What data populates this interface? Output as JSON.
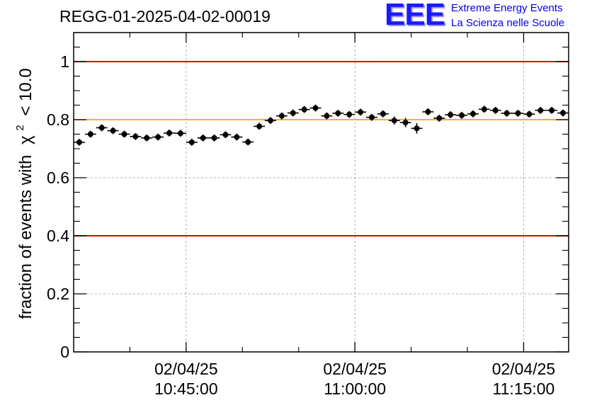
{
  "header": {
    "title": "REGG-01-2025-04-02-00019"
  },
  "logo": {
    "mark": "EEE",
    "line1": "Extreme Energy Events",
    "line2": "La Scienza nelle Scuole",
    "color": "#0000ee"
  },
  "chart_data": {
    "type": "scatter",
    "title": "REGG-01-2025-04-02-00019",
    "ylabel_prefix": "fraction of events with",
    "ylabel_chi": "χ",
    "ylabel_sup": "2",
    "ylabel_suffix": "< 10.0",
    "ylim": [
      0,
      1.1
    ],
    "yticks": [
      0,
      0.2,
      0.4,
      0.6,
      0.8,
      1
    ],
    "ytick_labels": [
      "0",
      "0.2",
      "0.4",
      "0.6",
      "0.8",
      "1"
    ],
    "xlim_minutes": [
      35.0,
      79.0
    ],
    "xticks_minutes": [
      45,
      60,
      75
    ],
    "xtick_labels": [
      {
        "date": "02/04/25",
        "time": "10:45:00"
      },
      {
        "date": "02/04/25",
        "time": "11:00:00"
      },
      {
        "date": "02/04/25",
        "time": "11:15:00"
      }
    ],
    "grid": true,
    "reference_lines": [
      {
        "y": 1.0,
        "color": "#e60000"
      },
      {
        "y": 0.8,
        "color": "#ffb400"
      },
      {
        "y": 0.4,
        "color": "#e60000"
      }
    ],
    "series": [
      {
        "color": "#000000",
        "x_minutes": [
          35.5,
          36.5,
          37.5,
          38.5,
          39.5,
          40.5,
          41.5,
          42.5,
          43.5,
          44.5,
          45.5,
          46.5,
          47.5,
          48.5,
          49.5,
          50.5,
          51.5,
          52.5,
          53.5,
          54.5,
          55.5,
          56.5,
          57.5,
          58.5,
          59.5,
          60.5,
          61.5,
          62.5,
          63.5,
          64.5,
          65.5,
          66.5,
          67.5,
          68.5,
          69.5,
          70.5,
          71.5,
          72.5,
          73.5,
          74.5,
          75.5,
          76.5,
          77.5,
          78.5
        ],
        "y": [
          0.722,
          0.75,
          0.772,
          0.762,
          0.75,
          0.742,
          0.737,
          0.74,
          0.754,
          0.753,
          0.722,
          0.737,
          0.737,
          0.748,
          0.74,
          0.723,
          0.777,
          0.797,
          0.813,
          0.823,
          0.835,
          0.84,
          0.813,
          0.822,
          0.818,
          0.826,
          0.808,
          0.82,
          0.797,
          0.79,
          0.77,
          0.827,
          0.805,
          0.817,
          0.815,
          0.82,
          0.836,
          0.832,
          0.822,
          0.822,
          0.819,
          0.832,
          0.832,
          0.823
        ],
        "yerr": [
          0.012,
          0.012,
          0.012,
          0.012,
          0.012,
          0.012,
          0.012,
          0.012,
          0.012,
          0.012,
          0.012,
          0.012,
          0.012,
          0.012,
          0.012,
          0.012,
          0.012,
          0.012,
          0.012,
          0.012,
          0.012,
          0.012,
          0.012,
          0.012,
          0.012,
          0.012,
          0.012,
          0.012,
          0.014,
          0.016,
          0.018,
          0.012,
          0.012,
          0.012,
          0.012,
          0.012,
          0.012,
          0.012,
          0.012,
          0.012,
          0.012,
          0.012,
          0.012,
          0.012
        ],
        "x_half_width_minutes": 0.5
      }
    ]
  }
}
